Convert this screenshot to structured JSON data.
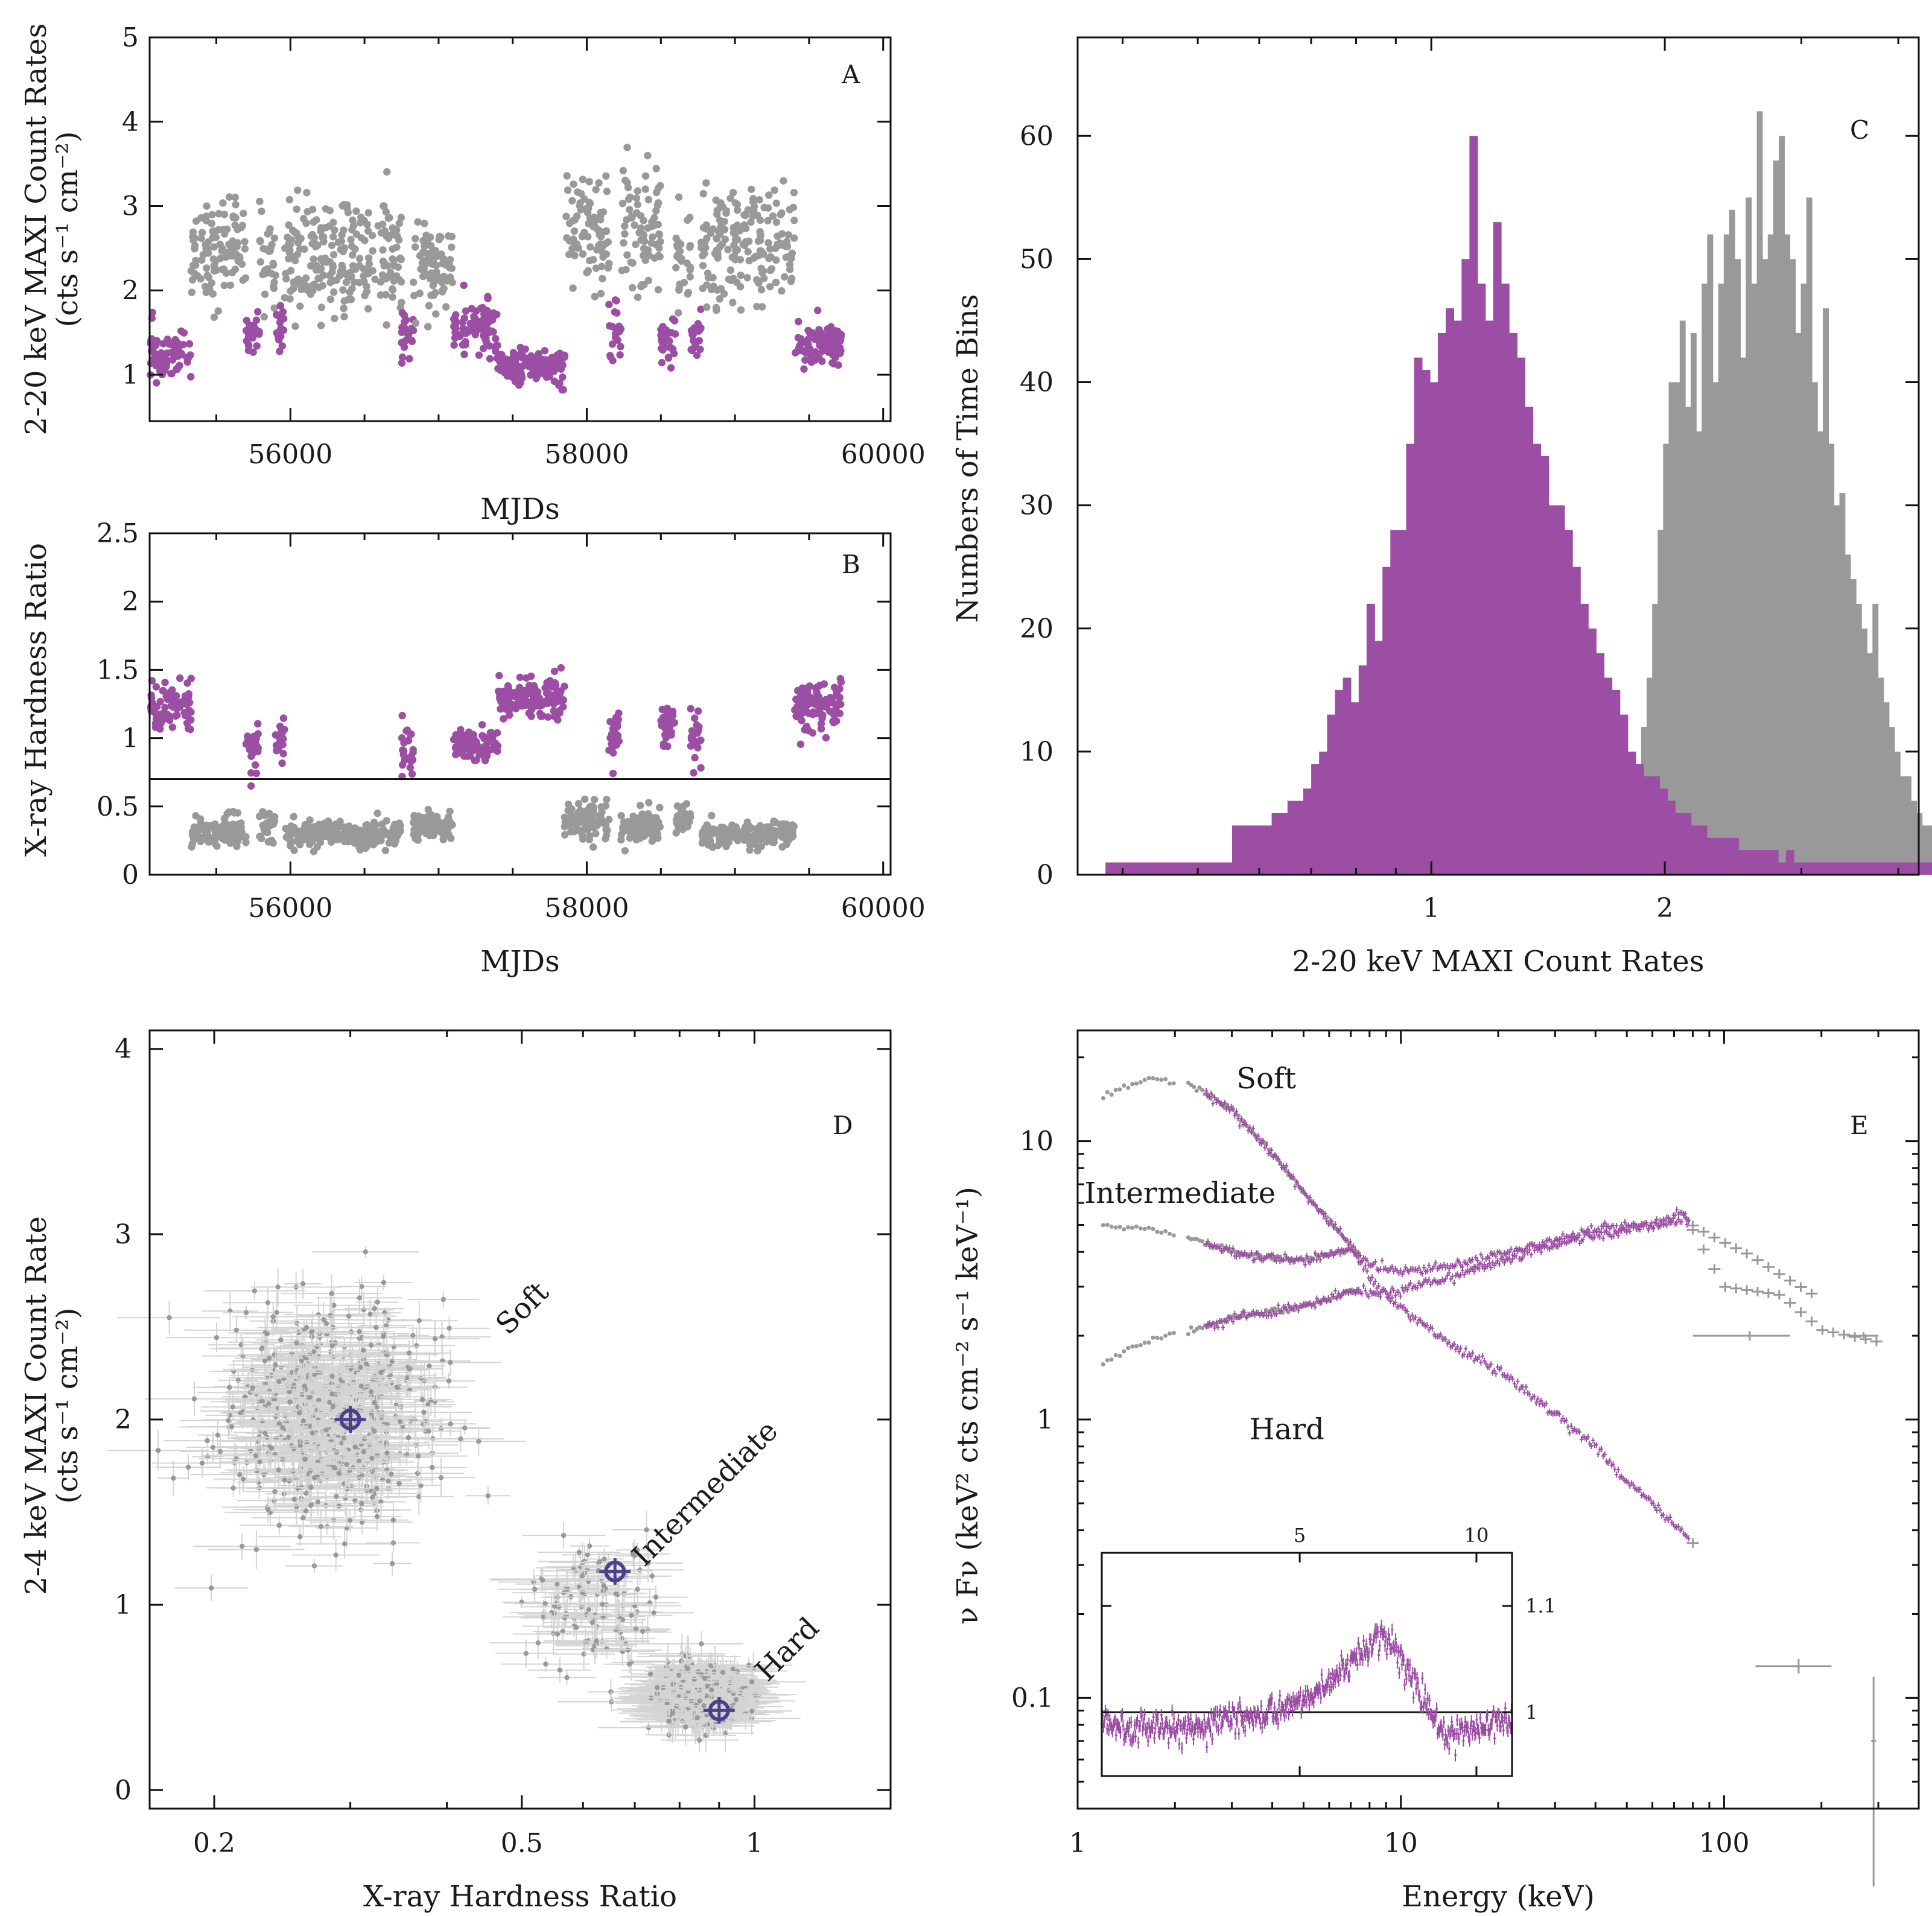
{
  "colors": {
    "soft": "#999999",
    "hard": "#9b4ea3",
    "marker": "#4b3f8f",
    "axis": "#111111",
    "errorbar": "#d4d4d4"
  },
  "panels": {
    "A": {
      "label": "A",
      "xlabel": "MJDs",
      "ylabel_line1": "2-20 keV MAXI Count Rates",
      "ylabel_line2": "(cts s⁻¹ cm⁻²)"
    },
    "B": {
      "label": "B",
      "xlabel": "MJDs",
      "ylabel": "X-ray Hardness Ratio"
    },
    "C": {
      "label": "C",
      "xlabel": "2-20 keV MAXI Count Rates",
      "ylabel": "Numbers of Time Bins"
    },
    "D": {
      "label": "D",
      "xlabel": "X-ray Hardness Ratio",
      "ylabel_line1": "2-4 keV MAXI Count Rate",
      "ylabel_line2": "(cts s⁻¹ cm⁻²)"
    },
    "E": {
      "label": "E",
      "xlabel": "Energy (keV)",
      "ylabel": "ν Fν (keV² cts cm⁻² s⁻¹ keV⁻¹)"
    }
  },
  "chart_data": [
    {
      "id": "A",
      "type": "scatter",
      "xlabel": "MJDs",
      "ylabel": "2-20 keV MAXI Count Rates (cts s⁻¹ cm⁻²)",
      "xlim": [
        55050,
        60050
      ],
      "ylim": [
        0.45,
        5.0
      ],
      "xticks": [
        "56000",
        "58000",
        "60000"
      ],
      "yticks": [
        "1",
        "2",
        "3",
        "4",
        "5"
      ],
      "grid": false,
      "series": [
        {
          "name": "soft",
          "color": "#999999",
          "description_points": "gray points mostly 1.5-4.5, segments at MJD 55350-57400 and 57800-59400"
        },
        {
          "name": "hard",
          "color": "#9b4ea3",
          "description_points": "purple points mostly 0.8-2.2"
        }
      ],
      "segments": [
        {
          "x0": 55050,
          "x1": 55330,
          "state": "hard",
          "center": 1.25,
          "spread": 0.25
        },
        {
          "x0": 55330,
          "x1": 55700,
          "state": "soft",
          "center": 2.45,
          "spread": 0.55
        },
        {
          "x0": 55700,
          "x1": 55790,
          "state": "hard",
          "center": 1.5,
          "spread": 0.3
        },
        {
          "x0": 55790,
          "x1": 55900,
          "state": "soft",
          "center": 2.4,
          "spread": 0.6
        },
        {
          "x0": 55900,
          "x1": 55960,
          "state": "hard",
          "center": 1.55,
          "spread": 0.3
        },
        {
          "x0": 55960,
          "x1": 56750,
          "state": "soft",
          "center": 2.4,
          "spread": 0.65
        },
        {
          "x0": 56750,
          "x1": 56830,
          "state": "hard",
          "center": 1.5,
          "spread": 0.35
        },
        {
          "x0": 56830,
          "x1": 57100,
          "state": "soft",
          "center": 2.3,
          "spread": 0.6
        },
        {
          "x0": 57100,
          "x1": 57400,
          "state": "hard",
          "center": 1.55,
          "spread": 0.3
        },
        {
          "x0": 57400,
          "x1": 57850,
          "state": "hard",
          "center": 1.1,
          "spread": 0.18
        },
        {
          "x0": 57850,
          "x1": 58150,
          "state": "soft",
          "center": 2.7,
          "spread": 0.6
        },
        {
          "x0": 58150,
          "x1": 58230,
          "state": "hard",
          "center": 1.5,
          "spread": 0.3
        },
        {
          "x0": 58230,
          "x1": 58500,
          "state": "soft",
          "center": 2.8,
          "spread": 0.7
        },
        {
          "x0": 58500,
          "x1": 58600,
          "state": "hard",
          "center": 1.4,
          "spread": 0.3
        },
        {
          "x0": 58600,
          "x1": 58700,
          "state": "soft",
          "center": 2.4,
          "spread": 0.5
        },
        {
          "x0": 58700,
          "x1": 58770,
          "state": "hard",
          "center": 1.5,
          "spread": 0.3
        },
        {
          "x0": 58770,
          "x1": 59400,
          "state": "soft",
          "center": 2.6,
          "spread": 0.6
        },
        {
          "x0": 59400,
          "x1": 59720,
          "state": "hard",
          "center": 1.35,
          "spread": 0.2
        }
      ]
    },
    {
      "id": "B",
      "type": "scatter",
      "xlabel": "MJDs",
      "ylabel": "X-ray Hardness Ratio",
      "xlim": [
        55050,
        60050
      ],
      "ylim": [
        0,
        2.5
      ],
      "xticks": [
        "56000",
        "58000",
        "60000"
      ],
      "yticks": [
        "0",
        "0.5",
        "1",
        "1.5",
        "2",
        "2.5"
      ],
      "threshold": 0.7,
      "segments": [
        {
          "x0": 55050,
          "x1": 55330,
          "state": "hard",
          "center": 1.25,
          "spread": 0.15
        },
        {
          "x0": 55330,
          "x1": 55700,
          "state": "soft",
          "center": 0.32,
          "spread": 0.1
        },
        {
          "x0": 55700,
          "x1": 55790,
          "state": "hard",
          "center": 0.95,
          "spread": 0.15
        },
        {
          "x0": 55790,
          "x1": 55900,
          "state": "soft",
          "center": 0.35,
          "spread": 0.12
        },
        {
          "x0": 55900,
          "x1": 55960,
          "state": "hard",
          "center": 0.95,
          "spread": 0.15
        },
        {
          "x0": 55960,
          "x1": 56750,
          "state": "soft",
          "center": 0.3,
          "spread": 0.08
        },
        {
          "x0": 56750,
          "x1": 56830,
          "state": "hard",
          "center": 0.95,
          "spread": 0.2
        },
        {
          "x0": 56830,
          "x1": 57100,
          "state": "soft",
          "center": 0.35,
          "spread": 0.1
        },
        {
          "x0": 57100,
          "x1": 57400,
          "state": "hard",
          "center": 0.95,
          "spread": 0.12
        },
        {
          "x0": 57400,
          "x1": 57850,
          "state": "hard",
          "center": 1.3,
          "spread": 0.15
        },
        {
          "x0": 57850,
          "x1": 58150,
          "state": "soft",
          "center": 0.4,
          "spread": 0.12
        },
        {
          "x0": 58150,
          "x1": 58230,
          "state": "hard",
          "center": 1.0,
          "spread": 0.15
        },
        {
          "x0": 58230,
          "x1": 58500,
          "state": "soft",
          "center": 0.35,
          "spread": 0.1
        },
        {
          "x0": 58500,
          "x1": 58600,
          "state": "hard",
          "center": 1.05,
          "spread": 0.2
        },
        {
          "x0": 58600,
          "x1": 58700,
          "state": "soft",
          "center": 0.4,
          "spread": 0.1
        },
        {
          "x0": 58700,
          "x1": 58770,
          "state": "hard",
          "center": 1.0,
          "spread": 0.2
        },
        {
          "x0": 58770,
          "x1": 59400,
          "state": "soft",
          "center": 0.3,
          "spread": 0.08
        },
        {
          "x0": 59400,
          "x1": 59720,
          "state": "hard",
          "center": 1.25,
          "spread": 0.18
        }
      ]
    },
    {
      "id": "C",
      "type": "bar",
      "xlabel": "2-20 keV MAXI Count Rates",
      "ylabel": "Numbers of Time Bins",
      "xscale": "log",
      "xlim": [
        0.35,
        4.25
      ],
      "ylim": [
        0,
        68
      ],
      "xticks": [
        "1",
        "2"
      ],
      "yticks": [
        "0",
        "10",
        "20",
        "30",
        "40",
        "50",
        "60"
      ],
      "series": [
        {
          "name": "hard",
          "color": "#9b4ea3",
          "log_start": -0.42,
          "log_step": 0.0102,
          "values": [
            1,
            1,
            1,
            1,
            1,
            1,
            1,
            1,
            1,
            1,
            1,
            1,
            1,
            1,
            1,
            1,
            4,
            4,
            4,
            4,
            4,
            5,
            5,
            6,
            6,
            7,
            9,
            10,
            13,
            15,
            16,
            14,
            17,
            22,
            19,
            25,
            28,
            28,
            35,
            42,
            41,
            40,
            44,
            46,
            45,
            50,
            60,
            48,
            45,
            53,
            48,
            44,
            42,
            38,
            35,
            34,
            30,
            30,
            28,
            25,
            22,
            20,
            18,
            16,
            15,
            13,
            10,
            9,
            8,
            8,
            7,
            6,
            5,
            5,
            4,
            4,
            3,
            3,
            3,
            3,
            2,
            2,
            2,
            2,
            2,
            1,
            2,
            1,
            1,
            1,
            1,
            1,
            1,
            1,
            1,
            1,
            1,
            1,
            1,
            1,
            1,
            1,
            1,
            1,
            1,
            1,
            1,
            1,
            1,
            1,
            1,
            1,
            1,
            1,
            1,
            1
          ]
        },
        {
          "name": "soft",
          "color": "#999999",
          "log_start": 0.235,
          "log_step": 0.0071,
          "values": [
            1,
            4,
            8,
            10,
            9,
            12,
            16,
            22,
            28,
            35,
            40,
            40,
            45,
            38,
            44,
            36,
            48,
            52,
            40,
            48,
            52,
            54,
            50,
            42,
            55,
            48,
            62,
            50,
            52,
            58,
            60,
            52,
            50,
            44,
            48,
            55,
            40,
            36,
            46,
            35,
            30,
            31,
            26,
            24,
            22,
            20,
            18,
            22,
            16,
            14,
            12,
            10,
            8,
            8,
            6,
            5,
            4,
            4,
            3,
            2,
            2,
            2,
            1,
            1,
            1,
            1,
            1
          ]
        }
      ]
    },
    {
      "id": "D",
      "type": "scatter",
      "xlabel": "X-ray Hardness Ratio",
      "ylabel": "2-4 keV MAXI Count Rate (cts s⁻¹ cm⁻²)",
      "xscale": "log",
      "xlim": [
        0.165,
        1.5
      ],
      "ylim": [
        -0.1,
        4.1
      ],
      "xticks": [
        "0.2",
        "0.5",
        "1"
      ],
      "yticks": [
        "0",
        "1",
        "2",
        "3",
        "4"
      ],
      "states": [
        {
          "name": "Soft",
          "x": 0.3,
          "y": 2.0
        },
        {
          "name": "Intermediate",
          "x": 0.66,
          "y": 1.18
        },
        {
          "name": "Hard",
          "x": 0.9,
          "y": 0.43
        }
      ],
      "clusters": [
        {
          "xc": 0.28,
          "yc": 2.0,
          "sx": 0.12,
          "sy": 0.4,
          "n": 650
        },
        {
          "xc": 0.62,
          "yc": 1.0,
          "sx": 0.08,
          "sy": 0.25,
          "n": 120
        },
        {
          "xc": 0.85,
          "yc": 0.5,
          "sx": 0.05,
          "sy": 0.12,
          "n": 480
        }
      ],
      "annotations": [
        "Soft",
        "Intermediate",
        "Hard"
      ]
    },
    {
      "id": "E",
      "type": "line",
      "xlabel": "Energy (keV)",
      "ylabel": "ν Fν (keV² cts cm⁻² s⁻¹ keV⁻¹)",
      "xscale": "log",
      "yscale": "log",
      "xlim": [
        1,
        400
      ],
      "ylim": [
        0.04,
        25
      ],
      "xticks": [
        "1",
        "10",
        "100"
      ],
      "yticks": [
        "0.1",
        "1",
        "10"
      ],
      "series": [
        {
          "name": "Soft",
          "points": [
            [
              1.2,
              14.5
            ],
            [
              1.7,
              17
            ],
            [
              2.2,
              16
            ],
            [
              3,
              13
            ],
            [
              4,
              9
            ],
            [
              5,
              6.5
            ],
            [
              6,
              5.2
            ],
            [
              7,
              4.2
            ],
            [
              8,
              3.2
            ],
            [
              10,
              2.5
            ],
            [
              15,
              1.8
            ],
            [
              20,
              1.5
            ],
            [
              30,
              1.05
            ],
            [
              40,
              0.8
            ],
            [
              50,
              0.6
            ],
            [
              60,
              0.5
            ],
            [
              80,
              0.36
            ]
          ]
        },
        {
          "name": "Intermediate",
          "points": [
            [
              1.2,
              5.0
            ],
            [
              1.7,
              4.8
            ],
            [
              2.2,
              4.5
            ],
            [
              3,
              4.0
            ],
            [
              4,
              3.8
            ],
            [
              5,
              3.75
            ],
            [
              6,
              3.9
            ],
            [
              7,
              4.1
            ],
            [
              8,
              3.6
            ],
            [
              10,
              3.4
            ],
            [
              15,
              3.6
            ],
            [
              20,
              3.9
            ],
            [
              30,
              4.4
            ],
            [
              40,
              4.8
            ],
            [
              60,
              5.0
            ],
            [
              75,
              5.2
            ],
            [
              90,
              4.6
            ],
            [
              120,
              3.9
            ],
            [
              150,
              3.3
            ],
            [
              200,
              2.7
            ]
          ]
        },
        {
          "name": "Hard",
          "points": [
            [
              1.2,
              1.6
            ],
            [
              1.7,
              1.95
            ],
            [
              2.2,
              2.1
            ],
            [
              3,
              2.3
            ],
            [
              4,
              2.45
            ],
            [
              5,
              2.55
            ],
            [
              6,
              2.7
            ],
            [
              7,
              2.9
            ],
            [
              8,
              2.85
            ],
            [
              10,
              2.9
            ],
            [
              15,
              3.3
            ],
            [
              20,
              3.7
            ],
            [
              30,
              4.2
            ],
            [
              40,
              4.6
            ],
            [
              60,
              5.0
            ],
            [
              75,
              5.5
            ],
            [
              100,
              3.0
            ],
            [
              150,
              2.8
            ],
            [
              200,
              2.1
            ],
            [
              300,
              1.9
            ]
          ]
        }
      ],
      "annotations": [
        "Soft",
        "Intermediate",
        "Hard"
      ],
      "inset": {
        "xscale": "log",
        "xlim": [
          2.3,
          11.5
        ],
        "ylim": [
          0.94,
          1.15
        ],
        "xticks": [
          "5",
          "10"
        ],
        "yticks": [
          "1",
          "1.1"
        ],
        "baseline": 1.0,
        "profile": [
          [
            2.3,
            0.99
          ],
          [
            3,
            0.985
          ],
          [
            4,
            0.995
          ],
          [
            5,
            1.01
          ],
          [
            6,
            1.04
          ],
          [
            6.5,
            1.06
          ],
          [
            6.9,
            1.075
          ],
          [
            7.3,
            1.06
          ],
          [
            8,
            1.02
          ],
          [
            8.5,
            0.99
          ],
          [
            9,
            0.975
          ],
          [
            10,
            0.985
          ],
          [
            11.5,
            0.995
          ]
        ]
      }
    }
  ]
}
